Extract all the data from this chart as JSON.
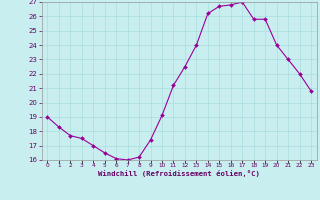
{
  "hours": [
    0,
    1,
    2,
    3,
    4,
    5,
    6,
    7,
    8,
    9,
    10,
    11,
    12,
    13,
    14,
    15,
    16,
    17,
    18,
    19,
    20,
    21,
    22,
    23
  ],
  "values": [
    19.0,
    18.3,
    17.7,
    17.5,
    17.0,
    16.5,
    16.1,
    16.0,
    16.2,
    17.4,
    19.1,
    21.2,
    22.5,
    24.0,
    26.2,
    26.7,
    26.8,
    27.0,
    25.8,
    25.8,
    24.0,
    23.0,
    22.0,
    20.8
  ],
  "xlim": [
    -0.5,
    23.5
  ],
  "ylim": [
    16,
    27
  ],
  "yticks": [
    16,
    17,
    18,
    19,
    20,
    21,
    22,
    23,
    24,
    25,
    26,
    27
  ],
  "xtick_labels": [
    "0",
    "1",
    "2",
    "3",
    "4",
    "5",
    "6",
    "7",
    "8",
    "9",
    "10",
    "11",
    "12",
    "13",
    "14",
    "15",
    "16",
    "17",
    "18",
    "19",
    "20",
    "21",
    "22",
    "23"
  ],
  "line_color": "#990099",
  "marker_color": "#990099",
  "bg_color": "#c8eef0",
  "grid_color": "#aadddd",
  "xlabel": "Windchill (Refroidissement éolien,°C)",
  "xlabel_color": "#660066",
  "tick_color": "#660066"
}
